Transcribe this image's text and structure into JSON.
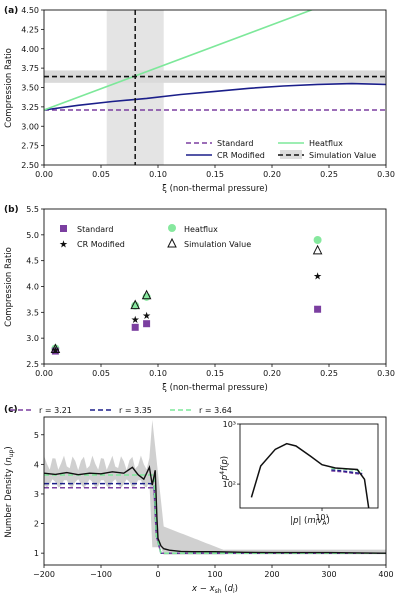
{
  "figure": {
    "title": ""
  },
  "chart_data": [
    {
      "panel": "(a)",
      "type": "line",
      "xlabel": "ξ (non-thermal pressure)",
      "ylabel": "Compression Ratio",
      "xlim": [
        0.0,
        0.3
      ],
      "ylim": [
        2.5,
        4.5
      ],
      "xticks": [
        "0.00",
        "0.05",
        "0.10",
        "0.15",
        "0.20",
        "0.25",
        "0.30"
      ],
      "yticks": [
        "2.50",
        "2.75",
        "3.00",
        "3.25",
        "3.50",
        "3.75",
        "4.00",
        "4.25",
        "4.50"
      ],
      "legend_position": "lower-right",
      "series": [
        {
          "name": "Standard",
          "color": "#7b3fa0",
          "style": "dashed",
          "x": [
            0.0,
            0.3
          ],
          "y": [
            3.21,
            3.21
          ]
        },
        {
          "name": "CR Modified",
          "color": "#1b1f8a",
          "style": "solid",
          "x": [
            0.0,
            0.03,
            0.06,
            0.09,
            0.12,
            0.15,
            0.18,
            0.21,
            0.24,
            0.27,
            0.3
          ],
          "y": [
            3.21,
            3.27,
            3.32,
            3.36,
            3.41,
            3.45,
            3.49,
            3.52,
            3.54,
            3.55,
            3.54
          ]
        },
        {
          "name": "Heatflux",
          "color": "#7de89a",
          "style": "solid",
          "x": [
            0.0,
            0.3
          ],
          "y": [
            3.21,
            4.86
          ]
        },
        {
          "name": "Simulation Value",
          "color": "#111111",
          "style": "dashed",
          "x": [
            0.0,
            0.3
          ],
          "y": [
            3.64,
            3.64
          ]
        }
      ],
      "vline": {
        "x": 0.08,
        "color": "#111111",
        "style": "dashed"
      },
      "vspan": [
        0.055,
        0.105
      ],
      "hspan": [
        3.56,
        3.72
      ]
    },
    {
      "panel": "(b)",
      "type": "scatter",
      "xlabel": "ξ (non-thermal pressure)",
      "ylabel": "Compression Ratio",
      "xlim": [
        0.0,
        0.3
      ],
      "ylim": [
        2.5,
        5.5
      ],
      "xticks": [
        "0.00",
        "0.05",
        "0.10",
        "0.15",
        "0.20",
        "0.25",
        "0.30"
      ],
      "yticks": [
        "2.5",
        "3.0",
        "3.5",
        "4.0",
        "4.5",
        "5.0",
        "5.5"
      ],
      "legend_position": "top-left",
      "series": [
        {
          "name": "Standard",
          "marker": "square",
          "color": "#7b3fa0",
          "x": [
            0.01,
            0.08,
            0.09,
            0.24
          ],
          "y": [
            2.75,
            3.21,
            3.28,
            3.56
          ]
        },
        {
          "name": "CR Modified",
          "marker": "star",
          "color": "#1b1f5e",
          "x": [
            0.01,
            0.08,
            0.09,
            0.24
          ],
          "y": [
            2.77,
            3.36,
            3.44,
            4.2
          ]
        },
        {
          "name": "Heatflux",
          "marker": "circle",
          "color": "#86e89e",
          "x": [
            0.01,
            0.08,
            0.09,
            0.24
          ],
          "y": [
            2.8,
            3.63,
            3.8,
            4.9
          ]
        },
        {
          "name": "Simulation Value",
          "marker": "triangle",
          "color": "#111111",
          "x": [
            0.01,
            0.08,
            0.09,
            0.24
          ],
          "y": [
            2.79,
            3.64,
            3.83,
            4.7
          ]
        }
      ]
    },
    {
      "panel": "(c)",
      "type": "line",
      "xlabel": "x − x_sh (d_i)",
      "ylabel": "Number Density (n_up)",
      "xlim": [
        -200,
        400
      ],
      "ylim": [
        0.6,
        5.6
      ],
      "xticks": [
        "−200",
        "−100",
        "0",
        "100",
        "200",
        "300",
        "400"
      ],
      "yticks": [
        "1",
        "2",
        "3",
        "4",
        "5"
      ],
      "legend_position": "top",
      "series": [
        {
          "name": "r = 3.21",
          "color": "#7b3fa0",
          "style": "dashed",
          "x": [
            -200,
            -7,
            -3,
            5,
            400
          ],
          "y": [
            3.21,
            3.21,
            1.6,
            1.0,
            1.0
          ]
        },
        {
          "name": "r = 3.35",
          "color": "#1b1f8a",
          "style": "dashed",
          "x": [
            -200,
            -7,
            -3,
            5,
            400
          ],
          "y": [
            3.35,
            3.35,
            1.6,
            1.0,
            1.0
          ]
        },
        {
          "name": "r = 3.64",
          "color": "#7de89a",
          "style": "dashed",
          "x": [
            -200,
            -7,
            -3,
            5,
            400
          ],
          "y": [
            3.64,
            3.64,
            1.6,
            1.0,
            1.0
          ]
        },
        {
          "name": "",
          "color": "#111111",
          "style": "solid",
          "x": [
            -200,
            -180,
            -160,
            -140,
            -120,
            -100,
            -80,
            -60,
            -45,
            -35,
            -25,
            -15,
            -10,
            -5,
            -2,
            0,
            5,
            10,
            20,
            40,
            60,
            100,
            150,
            200,
            300,
            400
          ],
          "y": [
            3.7,
            3.66,
            3.72,
            3.65,
            3.7,
            3.68,
            3.75,
            3.7,
            3.9,
            3.65,
            3.5,
            3.9,
            3.3,
            3.8,
            2.2,
            1.5,
            1.25,
            1.15,
            1.1,
            1.06,
            1.05,
            1.05,
            1.03,
            1.02,
            1.02,
            1.0
          ]
        }
      ],
      "inset": {
        "xlabel": "|p| (m_i v_A)",
        "ylabel": "p⁴f(p)",
        "x_scale": "log",
        "y_scale": "log",
        "xticks": [
          "10¹"
        ],
        "yticks": [
          "10²",
          "10³"
        ],
        "series": [
          {
            "color": "#111111",
            "style": "solid",
            "x": [
              2.5,
              3,
              4,
              5,
              6,
              8,
              10,
              13,
              16,
              20,
              23,
              25
            ],
            "y": [
              60,
              200,
              380,
              470,
              430,
              290,
              210,
              185,
              180,
              175,
              120,
              40
            ]
          }
        ]
      }
    }
  ]
}
